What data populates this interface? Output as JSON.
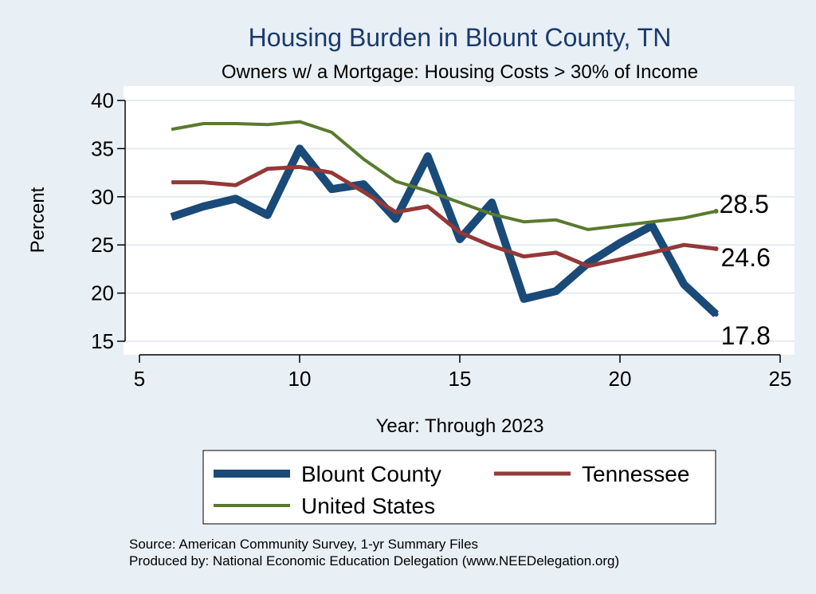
{
  "chart_data": {
    "type": "line",
    "title": "Housing Burden in Blount County, TN",
    "subtitle": "Owners w/ a Mortgage: Housing Costs > 30% of Income",
    "xlabel": "Year: Through 2023",
    "ylabel": "Percent",
    "xlim": [
      5,
      25
    ],
    "ylim": [
      15,
      40
    ],
    "xticks": [
      5,
      10,
      15,
      20,
      25
    ],
    "yticks": [
      15,
      20,
      25,
      30,
      35,
      40
    ],
    "x": [
      6,
      7,
      8,
      9,
      10,
      11,
      12,
      13,
      14,
      15,
      16,
      17,
      18,
      19,
      20,
      21,
      22,
      23
    ],
    "series": [
      {
        "name": "Blount County",
        "color": "#1a4a78",
        "values": [
          27.9,
          29.0,
          29.8,
          28.1,
          35.0,
          30.8,
          31.3,
          27.7,
          34.2,
          25.6,
          29.4,
          19.4,
          20.2,
          23.1,
          25.2,
          27.0,
          20.9,
          17.8
        ],
        "end_label": "17.8"
      },
      {
        "name": "Tennessee",
        "color": "#943838",
        "values": [
          31.5,
          31.5,
          31.2,
          32.9,
          33.1,
          32.5,
          30.5,
          28.4,
          29.0,
          26.3,
          24.9,
          23.8,
          24.2,
          22.8,
          23.5,
          24.2,
          25.0,
          24.6
        ],
        "end_label": "24.6"
      },
      {
        "name": "United States",
        "color": "#5a7a2e",
        "values": [
          37.0,
          37.6,
          37.6,
          37.5,
          37.8,
          36.7,
          33.9,
          31.6,
          30.6,
          29.4,
          28.2,
          27.4,
          27.6,
          26.6,
          27.0,
          27.4,
          27.8,
          28.5
        ],
        "end_label": "28.5"
      }
    ],
    "legend": {
      "placement": "bottom",
      "entries": [
        "Blount County",
        "Tennessee",
        "United States"
      ]
    }
  },
  "notes": {
    "source": "Source: American Community Survey, 1-yr Summary Files",
    "produced_by": "Produced by: National Economic Education Delegation (www.NEEDelegation.org)"
  }
}
